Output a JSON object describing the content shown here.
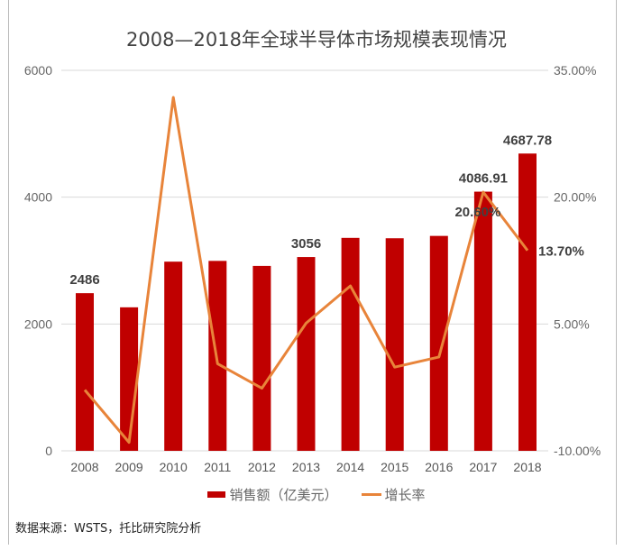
{
  "chart_data": {
    "type": "bar+line",
    "title": "2008—2018年全球半导体市场规模表现情况",
    "categories": [
      "2008",
      "2009",
      "2010",
      "2011",
      "2012",
      "2013",
      "2014",
      "2015",
      "2016",
      "2017",
      "2018"
    ],
    "series": [
      {
        "name": "销售额（亿美元）",
        "type": "bar",
        "axis": "left",
        "color": "#c00000",
        "values": [
          2486,
          2263,
          2983,
          2995,
          2916,
          3056,
          3358,
          3352,
          3389,
          4086.91,
          4687.78
        ]
      },
      {
        "name": "增长率",
        "type": "line",
        "axis": "right",
        "color": "#e8843a",
        "values": [
          -2.8,
          -9.0,
          31.8,
          0.3,
          -2.6,
          5.1,
          9.5,
          -0.1,
          1.1,
          20.6,
          13.7
        ]
      }
    ],
    "data_labels": [
      {
        "series": 0,
        "index": 0,
        "text": "2486"
      },
      {
        "series": 0,
        "index": 5,
        "text": "3056"
      },
      {
        "series": 0,
        "index": 9,
        "text": "4086.91"
      },
      {
        "series": 0,
        "index": 10,
        "text": "4687.78"
      },
      {
        "series": 1,
        "index": 9,
        "text": "20.60%"
      },
      {
        "series": 1,
        "index": 10,
        "text": "13.70%"
      }
    ],
    "left_axis": {
      "ylim": [
        0,
        6000
      ],
      "ticks": [
        "0",
        "2000",
        "4000",
        "6000"
      ]
    },
    "right_axis": {
      "ylim": [
        -10,
        35
      ],
      "ticks": [
        "-10.00%",
        "5.00%",
        "20.00%",
        "35.00%"
      ]
    },
    "grid": true,
    "legend": "bottom"
  },
  "footer": {
    "source": "数据来源：WSTS，托比研究院分析"
  }
}
